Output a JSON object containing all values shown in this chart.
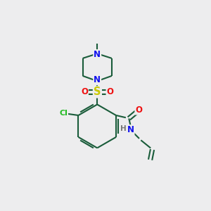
{
  "bg_color": "#ededee",
  "bond_color": "#1a5c3a",
  "bond_width": 1.5,
  "atom_colors": {
    "N": "#1010ee",
    "O": "#ee1010",
    "S": "#c8c800",
    "Cl": "#22bb22",
    "C": "#111111",
    "H": "#777777"
  },
  "font_size": 8.5,
  "fig_size": [
    3.0,
    3.0
  ],
  "dpi": 100
}
